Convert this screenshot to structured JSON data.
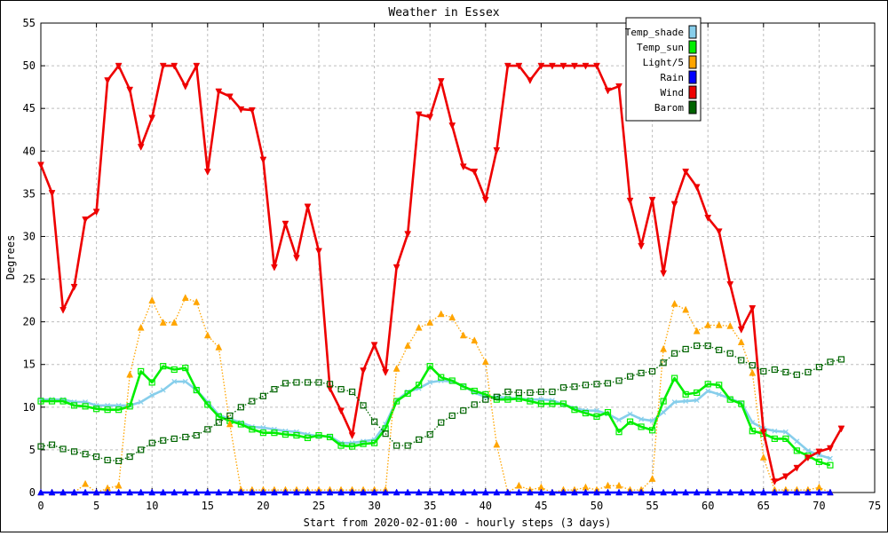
{
  "chart_data": {
    "type": "line",
    "title": "Weather in Essex",
    "xlabel": "Start from 2020-02-01:00 - hourly steps (3 days)",
    "ylabel": "Degrees",
    "xlim": [
      0,
      75
    ],
    "ylim": [
      0,
      55
    ],
    "xticks": [
      0,
      5,
      10,
      15,
      20,
      25,
      30,
      35,
      40,
      45,
      50,
      55,
      60,
      65,
      70,
      75
    ],
    "yticks": [
      0,
      5,
      10,
      15,
      20,
      25,
      30,
      35,
      40,
      45,
      50,
      55
    ],
    "grid": true,
    "legend_position": "top-right",
    "series": [
      {
        "name": "Temp_shade",
        "color": "#87ceeb",
        "marker": "x",
        "style": "solid",
        "values": [
          10.9,
          10.9,
          10.9,
          10.6,
          10.6,
          10.2,
          10.2,
          10.2,
          10.2,
          10.6,
          11.4,
          12.0,
          13.0,
          13.0,
          12.0,
          10.6,
          9.1,
          8.6,
          8.2,
          7.7,
          7.6,
          7.4,
          7.2,
          7.1,
          6.8,
          6.6,
          6.6,
          5.8,
          5.8,
          6.0,
          6.2,
          8.0,
          10.8,
          11.8,
          12.2,
          12.9,
          13.1,
          13.0,
          12.5,
          11.7,
          11.2,
          11.2,
          11.1,
          11.0,
          10.9,
          10.9,
          10.8,
          10.3,
          9.9,
          9.6,
          9.6,
          9.2,
          8.5,
          9.2,
          8.6,
          8.4,
          9.4,
          10.6,
          10.7,
          10.8,
          11.9,
          11.5,
          11.0,
          10.5,
          8.2,
          7.5,
          7.2,
          7.1,
          6.0,
          4.9,
          4.4,
          4.0
        ]
      },
      {
        "name": "Temp_sun",
        "color": "#00ee00",
        "marker": "square",
        "style": "solid",
        "values": [
          10.7,
          10.7,
          10.7,
          10.2,
          10.1,
          9.8,
          9.7,
          9.7,
          10.1,
          14.2,
          12.9,
          14.8,
          14.4,
          14.6,
          12.0,
          10.3,
          8.9,
          8.4,
          8.0,
          7.4,
          7.0,
          7.0,
          6.8,
          6.7,
          6.4,
          6.7,
          6.5,
          5.5,
          5.4,
          5.7,
          5.8,
          7.5,
          10.7,
          11.6,
          12.6,
          14.8,
          13.5,
          13.1,
          12.4,
          11.9,
          11.5,
          10.9,
          10.9,
          11.0,
          10.7,
          10.4,
          10.4,
          10.4,
          9.7,
          9.3,
          8.9,
          9.4,
          7.1,
          8.3,
          7.7,
          7.3,
          10.7,
          13.4,
          11.5,
          11.7,
          12.7,
          12.6,
          10.9,
          10.4,
          7.2,
          6.9,
          6.3,
          6.3,
          4.9,
          4.3,
          3.6,
          3.2
        ]
      },
      {
        "name": "Light/5",
        "color": "#ffa500",
        "marker": "triangle-up",
        "style": "dotted",
        "values": [
          0.0,
          0.0,
          0.0,
          0.0,
          1.0,
          0.0,
          0.5,
          0.8,
          13.8,
          19.3,
          22.5,
          19.9,
          19.9,
          22.8,
          22.3,
          18.4,
          17.0,
          8.0,
          0.3,
          0.3,
          0.3,
          0.3,
          0.3,
          0.3,
          0.3,
          0.3,
          0.3,
          0.3,
          0.3,
          0.3,
          0.3,
          0.3,
          14.5,
          17.2,
          19.3,
          19.9,
          20.9,
          20.5,
          18.4,
          17.8,
          15.3,
          5.6,
          0.0,
          0.8,
          0.3,
          0.6,
          0.0,
          0.3,
          0.3,
          0.6,
          0.3,
          0.8,
          0.8,
          0.3,
          0.3,
          1.6,
          16.8,
          22.1,
          21.4,
          18.9,
          19.6,
          19.6,
          19.5,
          17.6,
          14.0,
          4.1,
          0.3,
          0.3,
          0.3,
          0.3,
          0.6,
          0.0
        ]
      },
      {
        "name": "Rain",
        "color": "#0000ff",
        "marker": "triangle-up",
        "style": "solid",
        "values": [
          0,
          0,
          0,
          0,
          0,
          0,
          0,
          0,
          0,
          0,
          0,
          0,
          0,
          0,
          0,
          0,
          0,
          0,
          0,
          0,
          0,
          0,
          0,
          0,
          0,
          0,
          0,
          0,
          0,
          0,
          0,
          0,
          0,
          0,
          0,
          0,
          0,
          0,
          0,
          0,
          0,
          0,
          0,
          0,
          0,
          0,
          0,
          0,
          0,
          0,
          0,
          0,
          0,
          0,
          0,
          0,
          0,
          0,
          0,
          0,
          0,
          0,
          0,
          0,
          0,
          0,
          0,
          0,
          0,
          0,
          0,
          0
        ]
      },
      {
        "name": "Wind",
        "color": "#ee0000",
        "marker": "triangle-down",
        "style": "solid",
        "values": [
          38.4,
          35.1,
          21.4,
          24.1,
          32.0,
          32.9,
          48.3,
          50.0,
          47.2,
          40.5,
          43.9,
          50.0,
          50.0,
          47.6,
          50.0,
          37.6,
          47.0,
          46.4,
          44.9,
          44.8,
          39.0,
          26.4,
          31.5,
          27.5,
          33.5,
          28.3,
          12.2,
          9.6,
          6.7,
          14.3,
          17.3,
          14.1,
          26.4,
          30.3,
          44.3,
          44.0,
          48.2,
          43.0,
          38.2,
          37.6,
          34.3,
          40.1,
          50.0,
          50.0,
          48.3,
          50.0,
          50.0,
          50.0,
          50.0,
          50.0,
          50.0,
          47.1,
          47.6,
          34.2,
          28.9,
          34.3,
          25.7,
          33.8,
          37.6,
          35.8,
          32.2,
          30.6,
          24.4,
          19.1,
          21.6,
          7.1,
          1.3,
          1.9,
          2.9,
          4.1,
          4.8,
          5.2,
          7.5
        ]
      },
      {
        "name": "Barom",
        "color": "#006400",
        "marker": "square",
        "style": "dotted",
        "values": [
          5.4,
          5.6,
          5.1,
          4.8,
          4.5,
          4.2,
          3.8,
          3.7,
          4.2,
          5.0,
          5.8,
          6.1,
          6.3,
          6.5,
          6.7,
          7.4,
          8.2,
          9.0,
          10.0,
          10.7,
          11.3,
          12.1,
          12.8,
          12.9,
          12.9,
          12.9,
          12.7,
          12.1,
          11.8,
          10.2,
          8.3,
          6.9,
          5.5,
          5.5,
          6.2,
          6.8,
          8.2,
          9.0,
          9.6,
          10.3,
          10.9,
          11.2,
          11.8,
          11.7,
          11.7,
          11.8,
          11.8,
          12.3,
          12.4,
          12.6,
          12.7,
          12.8,
          13.1,
          13.6,
          14.0,
          14.2,
          15.2,
          16.3,
          16.8,
          17.2,
          17.2,
          16.7,
          16.3,
          15.5,
          14.9,
          14.2,
          14.4,
          14.1,
          13.8,
          14.1,
          14.7,
          15.3,
          15.6
        ]
      }
    ]
  }
}
